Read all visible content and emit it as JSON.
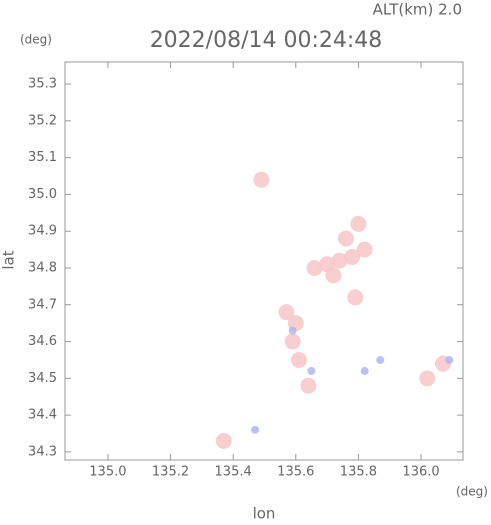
{
  "chart_data": {
    "type": "scatter",
    "title": "2022/08/14 00:24:48",
    "altitude_label": "ALT(km) 2.0",
    "y_unit": "(deg)",
    "x_unit": "(deg)",
    "x_label": "lon",
    "y_label": "lat",
    "xlim": [
      134.863,
      136.134
    ],
    "ylim": [
      34.278,
      35.36
    ],
    "xticks": [
      {
        "value": 135.0,
        "label": "135.0"
      },
      135.2,
      135.4,
      135.6,
      135.8,
      {
        "value": 136.0,
        "label": "136.0"
      }
    ],
    "yticks": [
      34.3,
      34.4,
      34.5,
      34.6,
      34.7,
      34.8,
      34.9,
      {
        "value": 35.0,
        "label": "35.0"
      },
      35.1,
      35.2,
      35.3
    ],
    "series": [
      {
        "color": "#f7c6c9",
        "x": [
          135.66,
          135.7,
          135.74,
          135.78,
          135.82,
          135.76,
          135.8,
          135.72,
          135.79,
          135.6,
          135.59,
          135.61,
          135.64,
          135.57,
          135.49,
          135.37,
          136.02,
          136.07
        ],
        "values": [
          34.8,
          34.81,
          34.82,
          34.83,
          34.85,
          34.88,
          34.92,
          34.78,
          34.72,
          34.65,
          34.6,
          34.55,
          34.48,
          34.68,
          35.04,
          34.33,
          34.5,
          34.54
        ]
      },
      {
        "color": "#b4b4ee",
        "x": [
          135.47,
          135.59,
          135.87,
          136.09,
          135.82,
          135.65
        ],
        "values": [
          34.36,
          34.63,
          34.55,
          34.55,
          34.52,
          34.52
        ]
      }
    ]
  }
}
